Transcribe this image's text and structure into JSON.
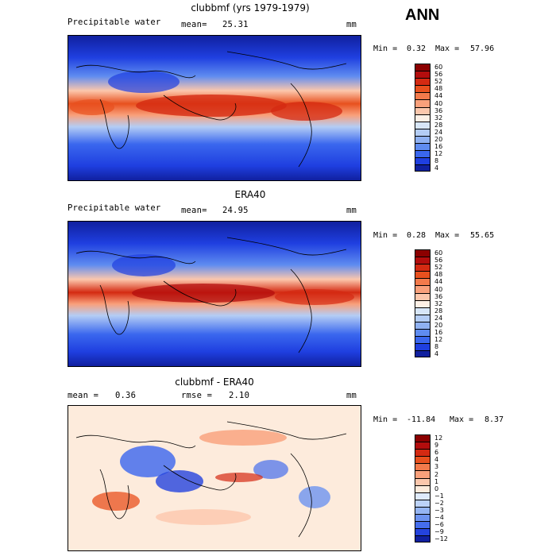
{
  "season": "ANN",
  "chart_data": [
    {
      "type": "heatmap",
      "title": "clubbmf (yrs 1979-1979)",
      "variable": "Precipitable water",
      "mean_label": "mean=",
      "mean_value": "25.31",
      "units": "mm",
      "min_label": "Min =",
      "min_value": "0.32",
      "max_label": "Max =",
      "max_value": "57.96",
      "levels": [
        "60",
        "56",
        "52",
        "48",
        "44",
        "40",
        "36",
        "32",
        "28",
        "24",
        "20",
        "16",
        "12",
        "8",
        "4"
      ],
      "colors": [
        "#8b0000",
        "#b30d0d",
        "#d42a12",
        "#e8501e",
        "#f37a4b",
        "#f9a07b",
        "#fcc7ac",
        "#fdf0e6",
        "#d7e6f8",
        "#b4cdf5",
        "#8fb1f2",
        "#5f8cf0",
        "#3a67ee",
        "#1f3fe0",
        "#10209f"
      ]
    },
    {
      "type": "heatmap",
      "title": "ERA40",
      "variable": "Precipitable water",
      "mean_label": "mean=",
      "mean_value": "24.95",
      "units": "mm",
      "min_label": "Min =",
      "min_value": "0.28",
      "max_label": "Max =",
      "max_value": "55.65",
      "levels": [
        "60",
        "56",
        "52",
        "48",
        "44",
        "40",
        "36",
        "32",
        "28",
        "24",
        "20",
        "16",
        "12",
        "8",
        "4"
      ],
      "colors": [
        "#8b0000",
        "#b30d0d",
        "#d42a12",
        "#e8501e",
        "#f37a4b",
        "#f9a07b",
        "#fcc7ac",
        "#fdf0e6",
        "#d7e6f8",
        "#b4cdf5",
        "#8fb1f2",
        "#5f8cf0",
        "#3a67ee",
        "#1f3fe0",
        "#10209f"
      ]
    },
    {
      "type": "heatmap",
      "title": "clubbmf - ERA40",
      "mean_label": "mean =",
      "mean_value": "0.36",
      "rmse_label": "rmse =",
      "rmse_value": "2.10",
      "units": "mm",
      "min_label": "Min =",
      "min_value": "-11.84",
      "max_label": "Max =",
      "max_value": "8.37",
      "levels": [
        "12",
        "9",
        "6",
        "4",
        "3",
        "2",
        "1",
        "0",
        "−1",
        "−2",
        "−3",
        "−4",
        "−6",
        "−9",
        "−12"
      ],
      "colors": [
        "#8b0000",
        "#b30d0d",
        "#d42a12",
        "#e8501e",
        "#f37a4b",
        "#f9a07b",
        "#fcc7ac",
        "#fdebdc",
        "#dfeafb",
        "#bcd2f7",
        "#95b5f3",
        "#6d93f0",
        "#456ded",
        "#2443de",
        "#1020a0"
      ]
    }
  ]
}
